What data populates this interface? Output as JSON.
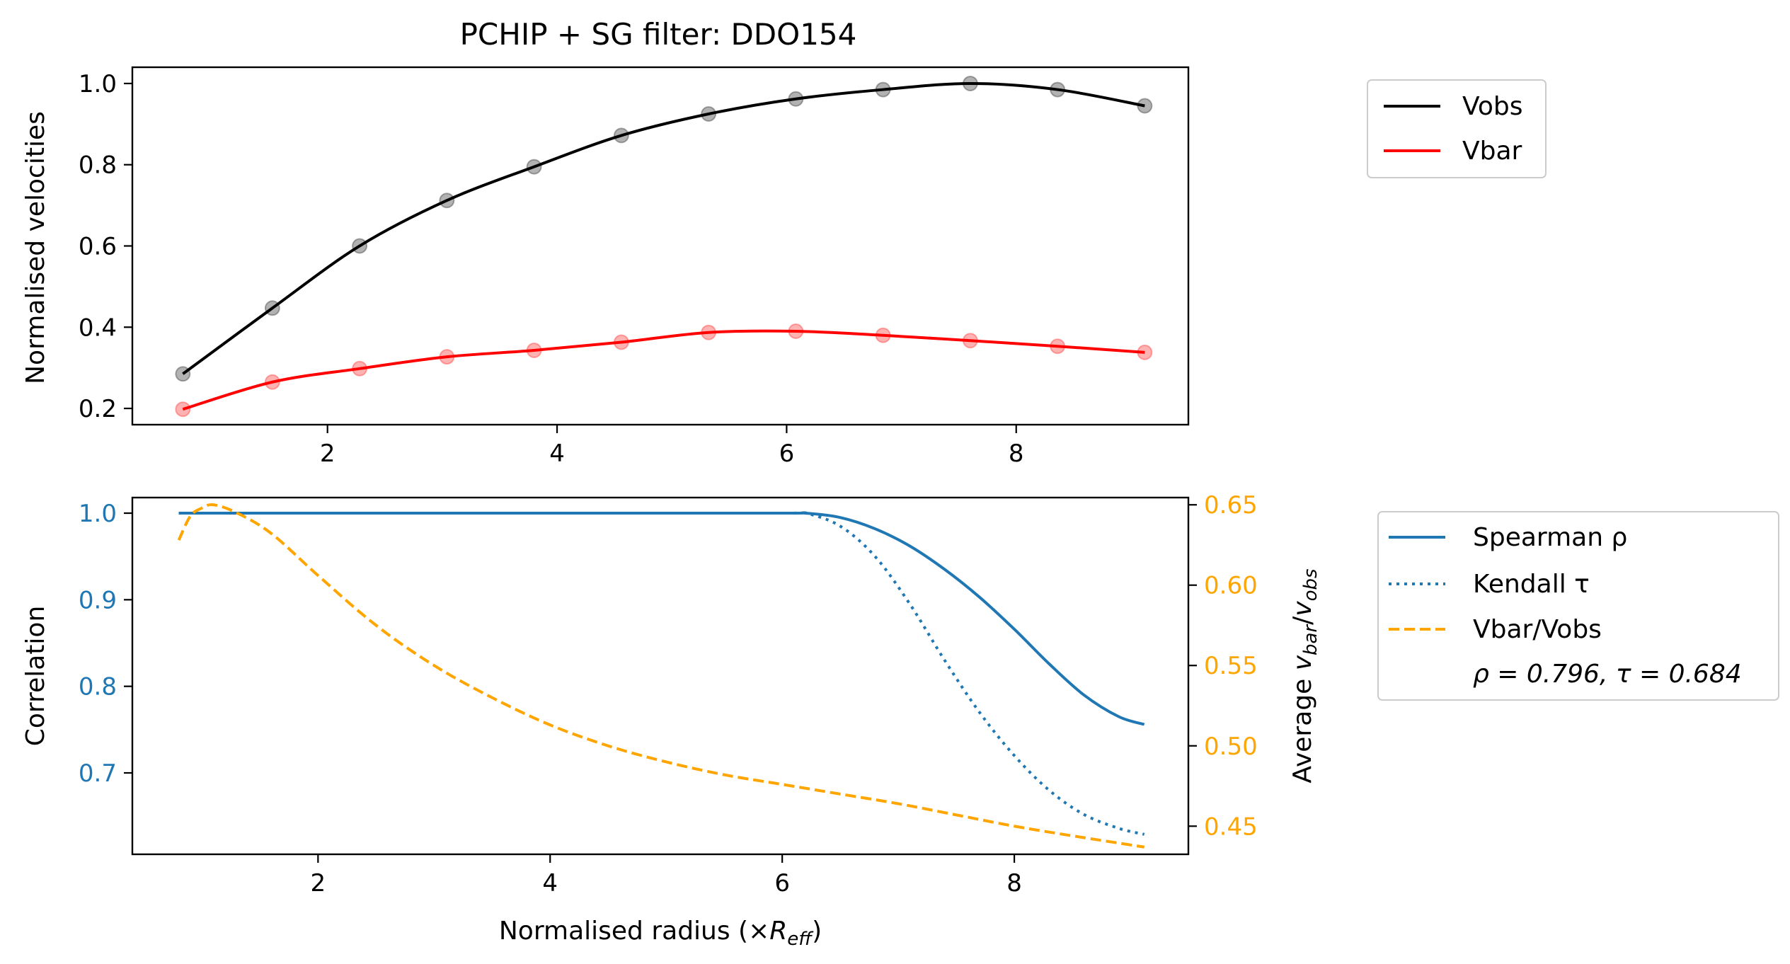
{
  "colors": {
    "vobs": "#000000",
    "vbar": "#ff0000",
    "corr": "#1f77b4",
    "ratio": "#ffa500",
    "axis": "#000000"
  },
  "chart_data": [
    {
      "type": "line",
      "title": "PCHIP + SG filter: DDO154",
      "xlabel": "",
      "ylabel": "Normalised velocities",
      "xlim": [
        0.3,
        9.5
      ],
      "ylim": [
        0.16,
        1.04
      ],
      "xticks": [
        2,
        4,
        6,
        8
      ],
      "yticks": [
        0.2,
        0.4,
        0.6,
        0.8,
        1.0
      ],
      "ytick_labels": [
        "0.2",
        "0.4",
        "0.6",
        "0.8",
        "1.0"
      ],
      "legend": {
        "placement": "outside-right",
        "entries": [
          "Vobs",
          "Vbar"
        ]
      },
      "x": [
        0.74,
        1.52,
        2.28,
        3.04,
        3.8,
        4.56,
        5.32,
        6.08,
        6.84,
        7.6,
        8.36,
        9.12
      ],
      "series": [
        {
          "name": "Vobs",
          "color": "#000000",
          "style": "solid",
          "markers": true,
          "values": [
            0.285,
            0.447,
            0.6,
            0.712,
            0.795,
            0.872,
            0.925,
            0.962,
            0.985,
            1.0,
            0.985,
            0.945
          ]
        },
        {
          "name": "Vbar",
          "color": "#ff0000",
          "style": "solid",
          "markers": true,
          "values": [
            0.198,
            0.265,
            0.298,
            0.327,
            0.343,
            0.363,
            0.387,
            0.39,
            0.38,
            0.367,
            0.353,
            0.338
          ]
        }
      ]
    },
    {
      "type": "line",
      "title": "",
      "xlabel": "Normalised radius (×R_eff)",
      "xlabel_parts": {
        "before": "Normalised radius (×",
        "italic": "R",
        "sub": "eff",
        "after": ")"
      },
      "ylabel": "Correlation",
      "y2label_parts": {
        "before": "Average ",
        "v1": "v",
        "sub1": "bar",
        "slash": "/",
        "v2": "v",
        "sub2": "obs"
      },
      "xlim": [
        0.4,
        9.5
      ],
      "ylim": [
        0.606,
        1.018
      ],
      "y2lim": [
        0.4325,
        0.6545
      ],
      "xticks": [
        2,
        4,
        6,
        8
      ],
      "yticks": [
        0.7,
        0.8,
        0.9,
        1.0
      ],
      "ytick_labels": [
        "0.7",
        "0.8",
        "0.9",
        "1.0"
      ],
      "y2ticks": [
        0.45,
        0.5,
        0.55,
        0.6,
        0.65
      ],
      "y2tick_labels": [
        "0.45",
        "0.50",
        "0.55",
        "0.60",
        "0.65"
      ],
      "legend": {
        "placement": "outside-right",
        "entries": [
          "Spearman ρ",
          "Kendall τ",
          "Vbar/Vobs"
        ],
        "annotation": "ρ = 0.796, τ = 0.684"
      },
      "series": [
        {
          "name": "Spearman ρ",
          "axis": "left",
          "color": "#1f77b4",
          "style": "solid",
          "x": [
            0.8,
            2.0,
            4.0,
            6.0,
            6.2,
            6.5,
            6.8,
            7.1,
            7.4,
            7.7,
            8.0,
            8.3,
            8.6,
            8.9,
            9.12
          ],
          "values": [
            1.0,
            1.0,
            1.0,
            1.0,
            1.0,
            0.995,
            0.982,
            0.962,
            0.935,
            0.903,
            0.866,
            0.826,
            0.79,
            0.765,
            0.756
          ]
        },
        {
          "name": "Kendall τ",
          "axis": "left",
          "color": "#1f77b4",
          "style": "dotted",
          "x": [
            0.8,
            2.0,
            4.0,
            6.0,
            6.2,
            6.5,
            6.8,
            7.1,
            7.4,
            7.7,
            8.0,
            8.3,
            8.6,
            8.9,
            9.12
          ],
          "values": [
            1.0,
            1.0,
            1.0,
            1.0,
            1.0,
            0.985,
            0.95,
            0.895,
            0.83,
            0.77,
            0.72,
            0.68,
            0.652,
            0.636,
            0.629
          ]
        },
        {
          "name": "Vbar/Vobs",
          "axis": "right",
          "color": "#ffa500",
          "style": "dashed",
          "x": [
            0.8,
            0.9,
            1.0,
            1.1,
            1.3,
            1.6,
            2.0,
            2.5,
            3.0,
            3.5,
            4.0,
            4.5,
            5.0,
            5.5,
            6.0,
            6.5,
            7.0,
            7.5,
            8.0,
            8.5,
            9.12
          ],
          "values": [
            0.628,
            0.643,
            0.648,
            0.65,
            0.645,
            0.632,
            0.606,
            0.575,
            0.55,
            0.53,
            0.513,
            0.5,
            0.49,
            0.482,
            0.476,
            0.47,
            0.464,
            0.457,
            0.45,
            0.444,
            0.437
          ]
        }
      ]
    }
  ]
}
